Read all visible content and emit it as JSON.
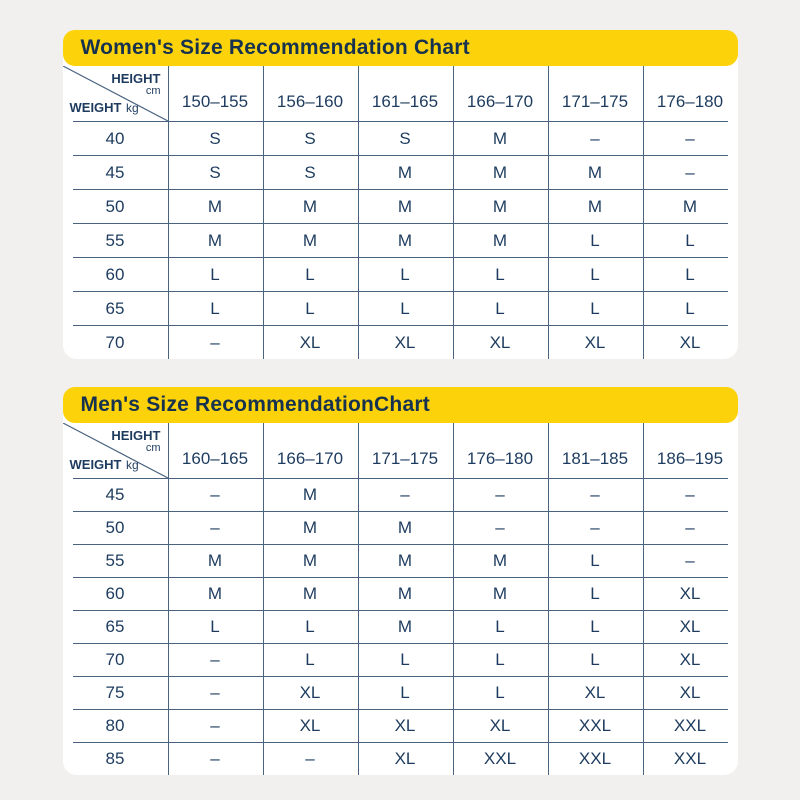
{
  "colors": {
    "accent_yellow": "#fcd30a",
    "text_navy": "#1d3b5e",
    "title_navy": "#16324f",
    "grid_line": "#4a6480",
    "card_background": "#ffffff",
    "page_background": "#f1f0ee"
  },
  "corner": {
    "height_label": "HEIGHT",
    "height_unit": "cm",
    "weight_label": "WEIGHT",
    "weight_unit": "kg"
  },
  "chart_data": [
    {
      "type": "table",
      "title": "Women's Size Recommendation Chart",
      "column_axis": "HEIGHT cm",
      "row_axis": "WEIGHT kg",
      "columns": [
        "150–155",
        "156–160",
        "161–165",
        "166–170",
        "171–175",
        "176–180"
      ],
      "rows": [
        {
          "weight": "40",
          "sizes": [
            "S",
            "S",
            "S",
            "M",
            "–",
            "–"
          ]
        },
        {
          "weight": "45",
          "sizes": [
            "S",
            "S",
            "M",
            "M",
            "M",
            "–"
          ]
        },
        {
          "weight": "50",
          "sizes": [
            "M",
            "M",
            "M",
            "M",
            "M",
            "M"
          ]
        },
        {
          "weight": "55",
          "sizes": [
            "M",
            "M",
            "M",
            "M",
            "L",
            "L"
          ]
        },
        {
          "weight": "60",
          "sizes": [
            "L",
            "L",
            "L",
            "L",
            "L",
            "L"
          ]
        },
        {
          "weight": "65",
          "sizes": [
            "L",
            "L",
            "L",
            "L",
            "L",
            "L"
          ]
        },
        {
          "weight": "70",
          "sizes": [
            "–",
            "XL",
            "XL",
            "XL",
            "XL",
            "XL"
          ]
        }
      ]
    },
    {
      "type": "table",
      "title": "Men's Size RecommendationChart",
      "column_axis": "HEIGHT cm",
      "row_axis": "WEIGHT kg",
      "columns": [
        "160–165",
        "166–170",
        "171–175",
        "176–180",
        "181–185",
        "186–195"
      ],
      "rows": [
        {
          "weight": "45",
          "sizes": [
            "–",
            "M",
            "–",
            "–",
            "–",
            "–"
          ]
        },
        {
          "weight": "50",
          "sizes": [
            "–",
            "M",
            "M",
            "–",
            "–",
            "–"
          ]
        },
        {
          "weight": "55",
          "sizes": [
            "M",
            "M",
            "M",
            "M",
            "L",
            "–"
          ]
        },
        {
          "weight": "60",
          "sizes": [
            "M",
            "M",
            "M",
            "M",
            "L",
            "XL"
          ]
        },
        {
          "weight": "65",
          "sizes": [
            "L",
            "L",
            "M",
            "L",
            "L",
            "XL"
          ]
        },
        {
          "weight": "70",
          "sizes": [
            "–",
            "L",
            "L",
            "L",
            "L",
            "XL"
          ]
        },
        {
          "weight": "75",
          "sizes": [
            "–",
            "XL",
            "L",
            "L",
            "XL",
            "XL"
          ]
        },
        {
          "weight": "80",
          "sizes": [
            "–",
            "XL",
            "XL",
            "XL",
            "XXL",
            "XXL"
          ]
        },
        {
          "weight": "85",
          "sizes": [
            "–",
            "–",
            "XL",
            "XXL",
            "XXL",
            "XXL"
          ]
        }
      ]
    }
  ]
}
